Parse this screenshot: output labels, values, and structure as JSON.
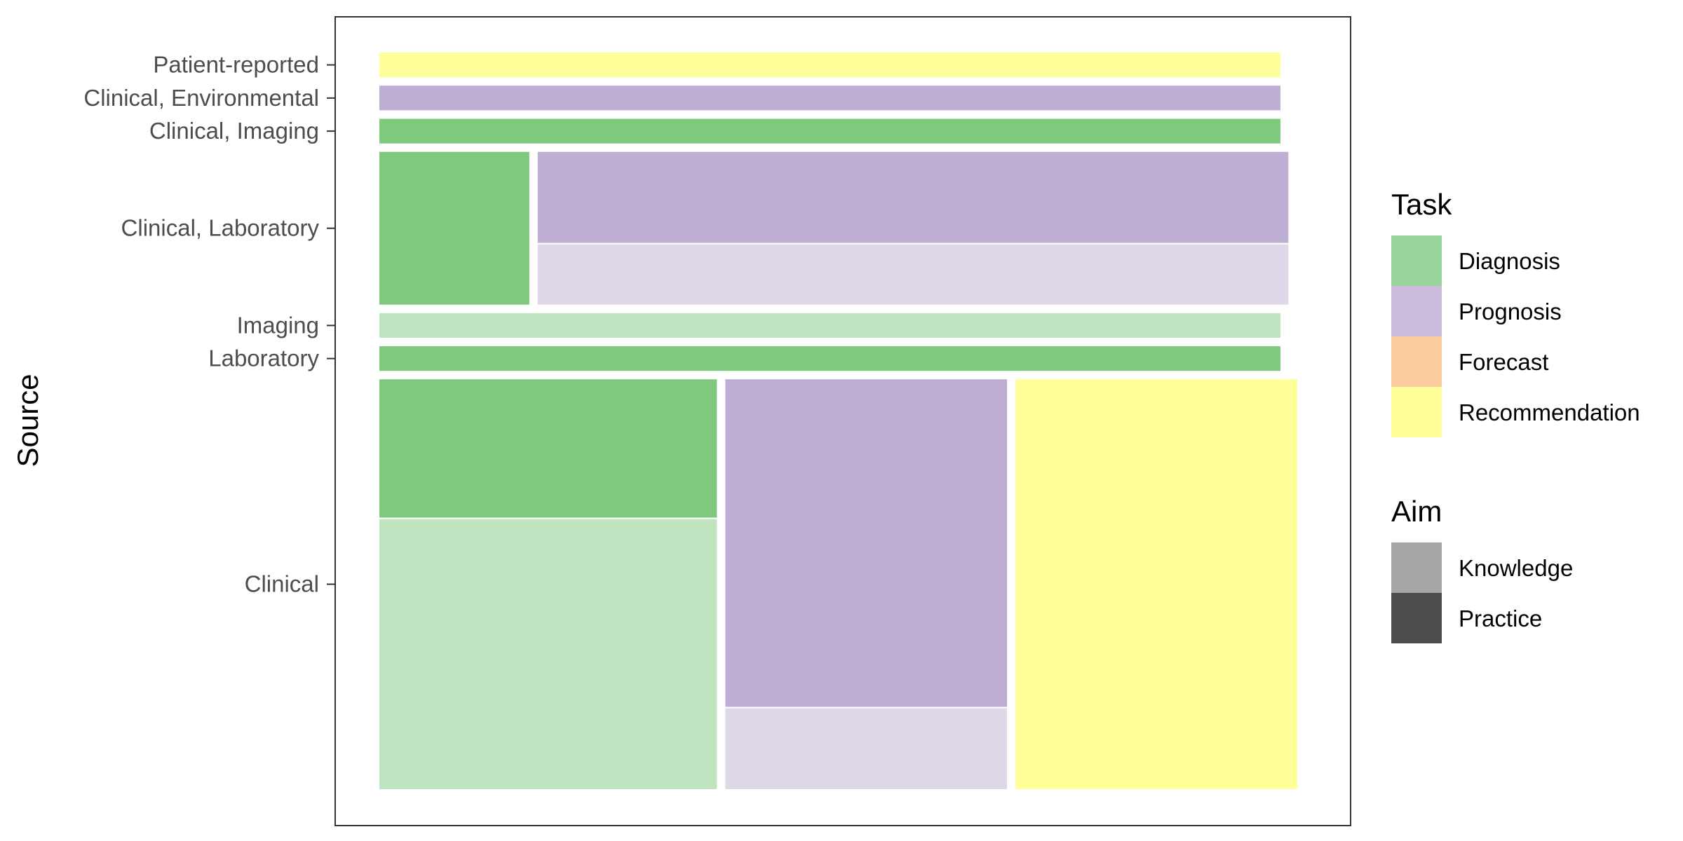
{
  "chart_data": {
    "type": "mosaic",
    "title": "",
    "xlabel": "",
    "ylabel": "Source",
    "categories": [
      "Clinical",
      "Laboratory",
      "Imaging",
      "Clinical, Laboratory",
      "Clinical, Imaging",
      "Clinical, Environmental",
      "Patient-reported"
    ],
    "tick_labels": [
      "Patient-reported",
      "Clinical, Environmental",
      "Clinical, Imaging",
      "Clinical, Laboratory",
      "Imaging",
      "Laboratory",
      "Clinical"
    ],
    "legend_placement": "right",
    "grid": false,
    "legends": [
      {
        "title": "Task",
        "items": [
          {
            "label": "Diagnosis",
            "color": "#99d49a"
          },
          {
            "label": "Prognosis",
            "color": "#cbbcdd"
          },
          {
            "label": "Forecast",
            "color": "#fdcc9c"
          },
          {
            "label": "Recommendation",
            "color": "#fffe99"
          }
        ]
      },
      {
        "title": "Aim",
        "items": [
          {
            "label": "Knowledge",
            "color": "#a6a6a6"
          },
          {
            "label": "Practice",
            "color": "#4d4d4d"
          }
        ]
      }
    ],
    "colors": {
      "Diagnosis": {
        "Practice": "#7fc97f",
        "Knowledge": "#c0e4c0"
      },
      "Prognosis": {
        "Practice": "#beaed4",
        "Knowledge": "#dfd8e9"
      },
      "Recommendation": {
        "Practice": "#ffff99",
        "Knowledge": "#ffffb5"
      }
    },
    "rows": [
      {
        "source": "Clinical",
        "share": 0.52,
        "tasks": [
          {
            "task": "Diagnosis",
            "share": 0.365,
            "aims": [
              {
                "aim": "Practice",
                "share": 0.34
              },
              {
                "aim": "Knowledge",
                "share": 0.66
              }
            ]
          },
          {
            "task": "Prognosis",
            "share": 0.305,
            "aims": [
              {
                "aim": "Practice",
                "share": 0.8
              },
              {
                "aim": "Knowledge",
                "share": 0.2
              }
            ]
          },
          {
            "task": "Recommendation",
            "share": 0.305,
            "aims": [
              {
                "aim": "Practice",
                "share": 1.0
              }
            ]
          }
        ]
      },
      {
        "source": "Laboratory",
        "share": 0.033,
        "tasks": [
          {
            "task": "Diagnosis",
            "share": 0.972,
            "aims": [
              {
                "aim": "Practice",
                "share": 1.0
              }
            ]
          }
        ]
      },
      {
        "source": "Imaging",
        "share": 0.033,
        "tasks": [
          {
            "task": "Diagnosis",
            "share": 0.972,
            "aims": [
              {
                "aim": "Knowledge",
                "share": 1.0
              }
            ]
          }
        ]
      },
      {
        "source": "Clinical, Laboratory",
        "share": 0.195,
        "tasks": [
          {
            "task": "Diagnosis",
            "share": 0.163,
            "aims": [
              {
                "aim": "Practice",
                "share": 1.0
              }
            ]
          },
          {
            "task": "Prognosis",
            "share": 0.81,
            "aims": [
              {
                "aim": "Practice",
                "share": 0.6
              },
              {
                "aim": "Knowledge",
                "share": 0.4
              }
            ]
          }
        ]
      },
      {
        "source": "Clinical, Imaging",
        "share": 0.033,
        "tasks": [
          {
            "task": "Diagnosis",
            "share": 0.972,
            "aims": [
              {
                "aim": "Practice",
                "share": 1.0
              }
            ]
          }
        ]
      },
      {
        "source": "Clinical, Environmental",
        "share": 0.033,
        "tasks": [
          {
            "task": "Prognosis",
            "share": 0.972,
            "aims": [
              {
                "aim": "Practice",
                "share": 1.0
              }
            ]
          }
        ]
      },
      {
        "source": "Patient-reported",
        "share": 0.033,
        "tasks": [
          {
            "task": "Recommendation",
            "share": 0.972,
            "aims": [
              {
                "aim": "Practice",
                "share": 1.0
              }
            ]
          }
        ]
      }
    ]
  }
}
